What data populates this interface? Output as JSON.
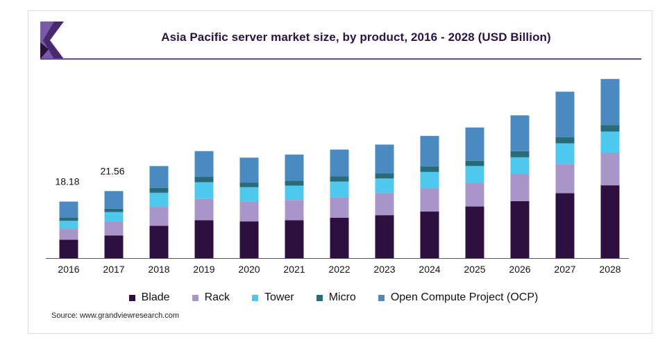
{
  "title": "Asia Pacific server market size, by product, 2016 - 2028 (USD Billion)",
  "source": "Source: www.grandviewresearch.com",
  "colors": {
    "Blade": "#2d1040",
    "Rack": "#a896c8",
    "Tower": "#4fc8f0",
    "Micro": "#2a6b7a",
    "Open Compute Project (OCP)": "#4a8ac0"
  },
  "chart_data": {
    "type": "bar",
    "stacked": true,
    "title": "Asia Pacific server market size, by product, 2016 - 2028 (USD Billion)",
    "xlabel": "",
    "ylabel": "",
    "ylim": [
      0,
      58
    ],
    "grid": false,
    "legend_position": "bottom",
    "categories": [
      "2016",
      "2017",
      "2018",
      "2019",
      "2020",
      "2021",
      "2022",
      "2023",
      "2024",
      "2025",
      "2026",
      "2027",
      "2028"
    ],
    "series": [
      {
        "name": "Blade",
        "values": [
          5.9,
          7.3,
          10.4,
          12.2,
          11.8,
          12.2,
          13.0,
          13.8,
          15.0,
          16.6,
          18.3,
          20.9,
          23.4
        ]
      },
      {
        "name": "Rack",
        "values": [
          3.6,
          4.3,
          6.2,
          6.9,
          6.4,
          6.5,
          6.6,
          7.2,
          7.5,
          7.7,
          8.8,
          9.4,
          10.5
        ]
      },
      {
        "name": "Tower",
        "values": [
          2.5,
          3.2,
          4.4,
          5.3,
          4.6,
          4.6,
          5.0,
          4.6,
          5.2,
          5.3,
          5.3,
          6.6,
          6.8
        ]
      },
      {
        "name": "Micro",
        "values": [
          1.1,
          1.1,
          1.6,
          1.7,
          1.5,
          1.6,
          1.7,
          1.7,
          1.8,
          1.7,
          2.0,
          2.0,
          2.1
        ]
      },
      {
        "name": "Open Compute Project (OCP)",
        "values": [
          5.08,
          5.66,
          7.0,
          8.3,
          8.0,
          8.4,
          8.6,
          9.2,
          9.8,
          10.7,
          11.5,
          14.6,
          14.8
        ]
      }
    ],
    "data_labels": [
      {
        "category": "2016",
        "text": "18.18"
      },
      {
        "category": "2017",
        "text": "21.56"
      }
    ]
  }
}
